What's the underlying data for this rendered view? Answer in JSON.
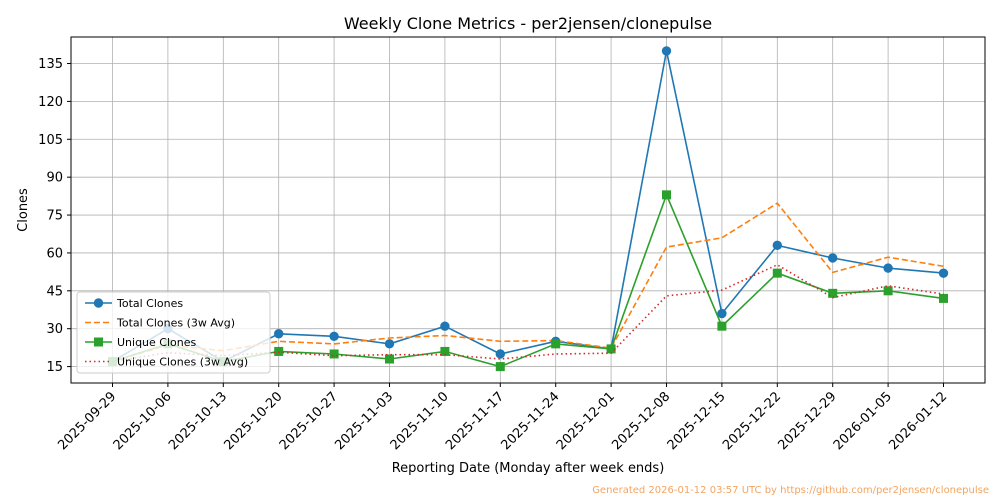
{
  "chart_data": {
    "type": "line",
    "title": "Weekly Clone Metrics - per2jensen/clonepulse",
    "xlabel": "Reporting Date (Monday after week ends)",
    "ylabel": "Clones",
    "x": [
      "2025-09-29",
      "2025-10-06",
      "2025-10-13",
      "2025-10-20",
      "2025-10-27",
      "2025-11-03",
      "2025-11-10",
      "2025-11-17",
      "2025-11-24",
      "2025-12-01",
      "2025-12-08",
      "2025-12-15",
      "2025-12-22",
      "2025-12-29",
      "2026-01-05",
      "2026-01-12"
    ],
    "yticks": [
      15,
      30,
      45,
      60,
      75,
      90,
      105,
      120,
      135
    ],
    "ylim": [
      8.5,
      145.5
    ],
    "grid": true,
    "legend_position": "lower-left",
    "series": [
      {
        "name": "Total Clones",
        "color": "#1f77b4",
        "style": "solid",
        "marker": "circle",
        "values": [
          17,
          30,
          17,
          28,
          27,
          24,
          31,
          20,
          25,
          22,
          140,
          36,
          63,
          58,
          54,
          52
        ]
      },
      {
        "name": "Total Clones (3w Avg)",
        "color": "#ff7f0e",
        "style": "dashed",
        "marker": "none",
        "values": [
          17,
          23.5,
          21.3,
          25,
          24,
          26.3,
          27.3,
          25,
          25.3,
          22.3,
          62.3,
          66,
          79.7,
          52.3,
          58.3,
          54.7
        ]
      },
      {
        "name": "Unique Clones",
        "color": "#2ca02c",
        "style": "solid",
        "marker": "square",
        "values": [
          17,
          24,
          17,
          21,
          20,
          18,
          21,
          15,
          24,
          22,
          83,
          31,
          52,
          44,
          45,
          42
        ]
      },
      {
        "name": "Unique Clones (3w Avg)",
        "color": "#d62728",
        "style": "dotted",
        "marker": "none",
        "values": [
          17,
          20.5,
          19.3,
          20.7,
          19.3,
          19.7,
          19.7,
          18,
          20,
          20.3,
          43,
          45.3,
          55.3,
          42.3,
          47,
          43.7
        ]
      }
    ]
  },
  "footer": {
    "text": "Generated 2026-01-12 03:57 UTC by https://github.com/per2jensen/clonepulse",
    "color": "#f4a460"
  }
}
